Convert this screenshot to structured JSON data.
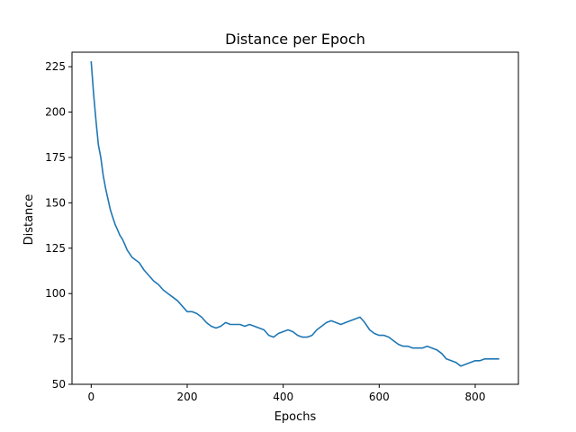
{
  "chart_data": {
    "type": "line",
    "title": "Distance per Epoch",
    "xlabel": "Epochs",
    "ylabel": "Distance",
    "xlim": [
      -40,
      890
    ],
    "ylim": [
      50,
      233
    ],
    "xticks": [
      0,
      200,
      400,
      600,
      800
    ],
    "yticks": [
      50,
      75,
      100,
      125,
      150,
      175,
      200,
      225
    ],
    "grid": false,
    "series": [
      {
        "color": "#1f77b4",
        "x": [
          0,
          5,
          10,
          15,
          20,
          25,
          30,
          35,
          40,
          45,
          50,
          55,
          60,
          65,
          70,
          75,
          80,
          85,
          90,
          95,
          100,
          110,
          120,
          130,
          140,
          150,
          160,
          170,
          180,
          190,
          200,
          210,
          220,
          230,
          240,
          250,
          260,
          270,
          280,
          290,
          300,
          310,
          320,
          330,
          340,
          350,
          360,
          370,
          380,
          390,
          400,
          410,
          420,
          430,
          440,
          450,
          460,
          470,
          480,
          490,
          500,
          510,
          520,
          530,
          540,
          550,
          560,
          570,
          580,
          590,
          600,
          610,
          620,
          630,
          640,
          650,
          660,
          670,
          680,
          690,
          700,
          710,
          720,
          730,
          740,
          750,
          760,
          770,
          780,
          790,
          800,
          810,
          820,
          830,
          840,
          850
        ],
        "y": [
          228,
          210,
          195,
          182,
          175,
          165,
          158,
          152,
          146,
          142,
          138,
          135,
          132,
          130,
          127,
          124,
          122,
          120,
          119,
          118,
          117,
          113,
          110,
          107,
          105,
          102,
          100,
          98,
          96,
          93,
          90,
          90,
          89,
          87,
          84,
          82,
          81,
          82,
          84,
          83,
          83,
          83,
          82,
          83,
          82,
          81,
          80,
          77,
          76,
          78,
          79,
          80,
          79,
          77,
          76,
          76,
          77,
          80,
          82,
          84,
          85,
          84,
          83,
          84,
          85,
          86,
          87,
          84,
          80,
          78,
          77,
          77,
          76,
          74,
          72,
          71,
          71,
          70,
          70,
          70,
          71,
          70,
          69,
          67,
          64,
          63,
          62,
          60,
          61,
          62,
          63,
          63,
          64,
          64,
          64,
          64
        ]
      }
    ]
  }
}
